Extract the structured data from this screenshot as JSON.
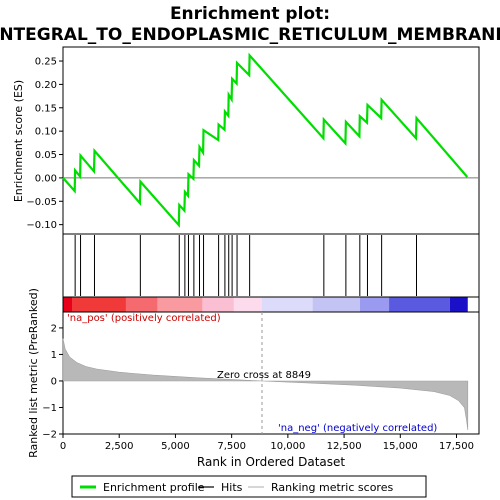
{
  "chart_data": {
    "type": "line",
    "title_line1": "Enrichment plot:",
    "title_line2": "INTEGRAL_TO_ENDOPLASMIC_RETICULUM_MEMBRANE",
    "top_panel": {
      "ylabel": "Enrichment score (ES)",
      "ylim": [
        -0.12,
        0.28
      ],
      "yticks": [
        -0.1,
        -0.05,
        0.0,
        0.05,
        0.1,
        0.15,
        0.2,
        0.25
      ],
      "ytick_labels": [
        "−0.10",
        "−0.05",
        "0.00",
        "0.05",
        "0.10",
        "0.15",
        "0.20",
        "0.25"
      ],
      "line_color": "#00dd00",
      "series": [
        {
          "name": "Enrichment profile",
          "x": [
            0,
            520,
            540,
            760,
            780,
            1380,
            1400,
            3420,
            3440,
            5150,
            5170,
            5400,
            5420,
            5560,
            5580,
            5800,
            5820,
            6050,
            6070,
            6230,
            6250,
            6900,
            6920,
            7180,
            7200,
            7350,
            7370,
            7500,
            7520,
            7720,
            7740,
            8280,
            8300,
            11580,
            11600,
            12560,
            12580,
            13180,
            13200,
            13520,
            13540,
            14150,
            14170,
            15700,
            15720,
            17980
          ],
          "y": [
            0.0,
            -0.028,
            0.016,
            0.003,
            0.048,
            0.014,
            0.058,
            -0.054,
            -0.008,
            -0.101,
            -0.058,
            -0.07,
            -0.03,
            -0.038,
            0.008,
            -0.002,
            0.038,
            0.026,
            0.066,
            0.054,
            0.102,
            0.081,
            0.114,
            0.103,
            0.142,
            0.133,
            0.178,
            0.168,
            0.212,
            0.202,
            0.246,
            0.22,
            0.262,
            0.085,
            0.125,
            0.074,
            0.12,
            0.089,
            0.132,
            0.118,
            0.156,
            0.128,
            0.167,
            0.085,
            0.128,
            0.002
          ]
        }
      ]
    },
    "hits": {
      "legend_name": "Hits",
      "positions": [
        540,
        780,
        1400,
        3440,
        5170,
        5420,
        5580,
        5820,
        6070,
        6250,
        6920,
        7200,
        7370,
        7520,
        7740,
        8300,
        11600,
        12580,
        13200,
        13540,
        14170,
        15720
      ]
    },
    "heatmap_bar": {
      "segments": [
        {
          "x0": 0,
          "x1": 400,
          "color": "#e8001a"
        },
        {
          "x0": 400,
          "x1": 2800,
          "color": "#f03a3a"
        },
        {
          "x0": 2800,
          "x1": 4200,
          "color": "#f46a6e"
        },
        {
          "x0": 4200,
          "x1": 6200,
          "color": "#f89aa0"
        },
        {
          "x0": 6200,
          "x1": 7600,
          "color": "#fbbfd4"
        },
        {
          "x0": 7600,
          "x1": 8849,
          "color": "#fcdcec"
        },
        {
          "x0": 8849,
          "x1": 11100,
          "color": "#dcdcfa"
        },
        {
          "x0": 11100,
          "x1": 13200,
          "color": "#c4c4f4"
        },
        {
          "x0": 13200,
          "x1": 14500,
          "color": "#9a9af0"
        },
        {
          "x0": 14500,
          "x1": 17200,
          "color": "#5a5ae0"
        },
        {
          "x0": 17200,
          "x1": 18000,
          "color": "#1a10c8"
        }
      ]
    },
    "bottom_panel": {
      "ylabel": "Ranked list metric (PreRanked)",
      "xlabel": "Rank in Ordered Dataset",
      "xlim": [
        0,
        18500
      ],
      "xticks": [
        0,
        2500,
        5000,
        7500,
        10000,
        12500,
        15000,
        17500
      ],
      "xtick_labels": [
        "0",
        "2,500",
        "5,000",
        "7,500",
        "10,000",
        "12,500",
        "15,000",
        "17,500"
      ],
      "ylim": [
        -2.0,
        2.6
      ],
      "yticks": [
        -2,
        -1,
        0,
        1,
        2
      ],
      "ytick_labels": [
        "−2",
        "−1",
        "0",
        "1",
        "2"
      ],
      "metric": {
        "x": [
          0,
          100,
          300,
          600,
          1000,
          1500,
          2500,
          4000,
          6000,
          8849,
          11000,
          13000,
          15000,
          16500,
          17200,
          17600,
          17850,
          17950,
          18000
        ],
        "y": [
          1.6,
          1.2,
          0.9,
          0.7,
          0.55,
          0.45,
          0.33,
          0.22,
          0.12,
          0.0,
          -0.08,
          -0.16,
          -0.27,
          -0.4,
          -0.55,
          -0.75,
          -1.0,
          -1.5,
          -1.85
        ]
      },
      "zero_cross_label": "Zero cross at 8849",
      "zero_cross_x": 8849,
      "pos_label": "'na_pos' (positively correlated)",
      "neg_label": "'na_neg' (negatively correlated)",
      "pos_color": "#cc0000",
      "neg_color": "#0000cc"
    },
    "legend": {
      "items": [
        {
          "label": "Enrichment profile",
          "color": "#00dd00"
        },
        {
          "label": "Hits",
          "color": "#000000"
        },
        {
          "label": "Ranking metric scores",
          "color": "#bbbbbb"
        }
      ]
    }
  }
}
